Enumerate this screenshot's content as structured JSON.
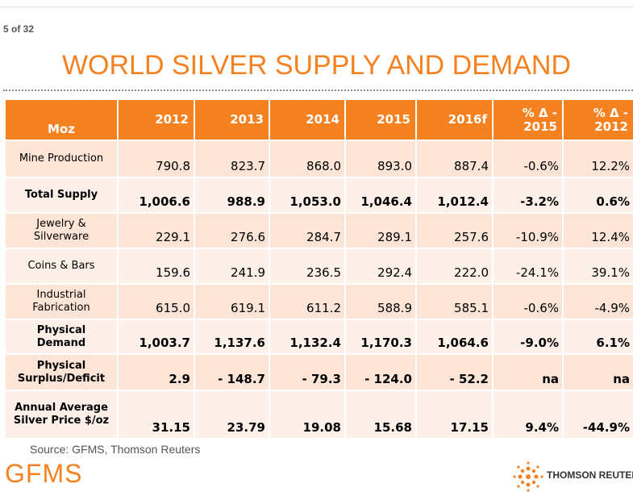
{
  "header": {
    "page": "5 of 32",
    "title": "WORLD SILVER SUPPLY AND DEMAND"
  },
  "table": {
    "columns": [
      "Moz",
      "2012",
      "2013",
      "2014",
      "2015",
      "2016f",
      "% Δ - 2015",
      "% Δ - 2012"
    ],
    "rows": [
      {
        "label": "Mine Production",
        "bold": false,
        "cells": [
          "790.8",
          "823.7",
          "868.0",
          "893.0",
          "887.4",
          "-0.6%",
          "12.2%"
        ]
      },
      {
        "label": "Total Supply",
        "bold": true,
        "cells": [
          "1,006.6",
          "988.9",
          "1,053.0",
          "1,046.4",
          "1,012.4",
          "-3.2%",
          "0.6%"
        ]
      },
      {
        "label": "Jewelry & Silverware",
        "bold": false,
        "cells": [
          "229.1",
          "276.6",
          "284.7",
          "289.1",
          "257.6",
          "-10.9%",
          "12.4%"
        ]
      },
      {
        "label": "Coins & Bars",
        "bold": false,
        "cells": [
          "159.6",
          "241.9",
          "236.5",
          "292.4",
          "222.0",
          "-24.1%",
          "39.1%"
        ]
      },
      {
        "label": "Industrial Fabrication",
        "bold": false,
        "cells": [
          "615.0",
          "619.1",
          "611.2",
          "588.9",
          "585.1",
          "-0.6%",
          "-4.9%"
        ]
      },
      {
        "label": "Physical Demand",
        "bold": true,
        "cells": [
          "1,003.7",
          "1,137.6",
          "1,132.4",
          "1,170.3",
          "1,064.6",
          "-9.0%",
          "6.1%"
        ]
      },
      {
        "label": "Physical Surplus/Deficit",
        "bold": true,
        "cells": [
          "2.9",
          "- 148.7",
          "- 79.3",
          "- 124.0",
          "- 52.2",
          "na",
          "na"
        ]
      },
      {
        "label": "Annual Average Silver Price $/oz",
        "bold": true,
        "cells": [
          "31.15",
          "23.79",
          "19.08",
          "15.68",
          "17.15",
          "9.4%",
          "-44.9%"
        ]
      }
    ]
  },
  "footer": {
    "source": "Source: GFMS, Thomson Reuters",
    "logo_left": "GFMS",
    "logo_right": "THOMSON REUTERS"
  }
}
